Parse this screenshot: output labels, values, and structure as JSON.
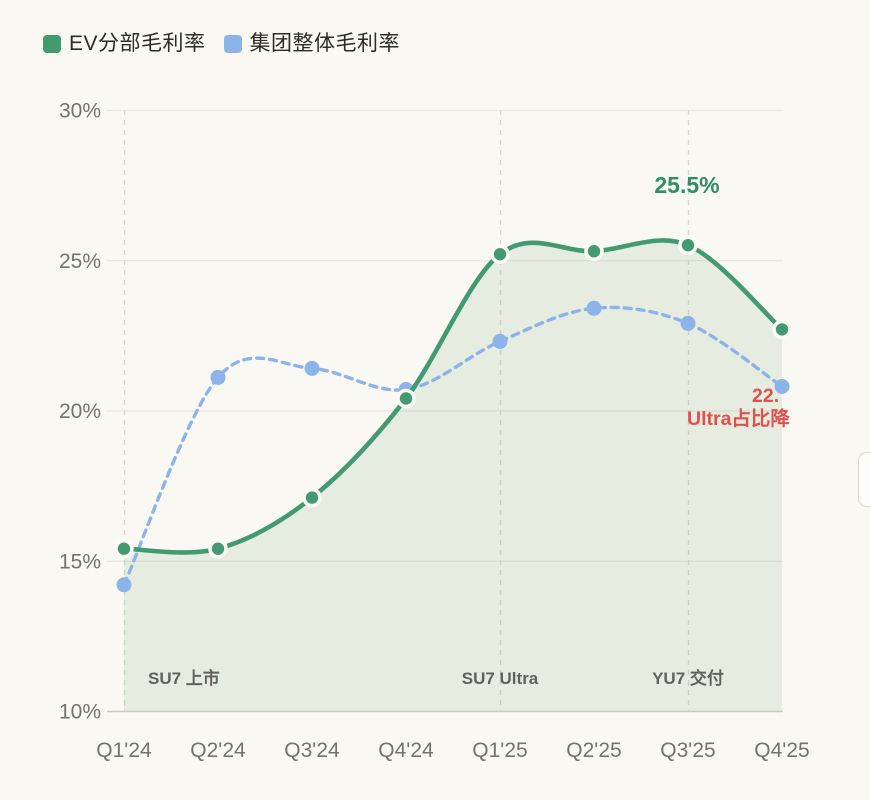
{
  "page": {
    "background": "#FAF8F2"
  },
  "legend": {
    "items": [
      {
        "label": "EV分部毛利率",
        "color": "#449A70"
      },
      {
        "label": "集团整体毛利率",
        "color": "#8CB4E8"
      }
    ]
  },
  "chart_data": {
    "type": "line",
    "title": "",
    "categories": [
      "Q1'24",
      "Q2'24",
      "Q3'24",
      "Q4'24",
      "Q1'25",
      "Q2'25",
      "Q3'25",
      "Q4'25"
    ],
    "series": [
      {
        "name": "EV分部毛利率",
        "color": "#449A70",
        "line_style": "solid",
        "area_fill": true,
        "values": [
          15.4,
          15.4,
          17.1,
          20.4,
          25.2,
          25.3,
          25.5,
          22.7
        ]
      },
      {
        "name": "集团整体毛利率",
        "color": "#8CB4E8",
        "line_style": "dashed",
        "area_fill": false,
        "values": [
          14.2,
          21.1,
          21.4,
          20.7,
          22.3,
          23.4,
          22.9,
          20.8
        ]
      }
    ],
    "xlabel": "",
    "ylabel": "",
    "ylim": [
      10,
      30
    ],
    "yticks": [
      {
        "value": 10,
        "label": "10%"
      },
      {
        "value": 15,
        "label": "15%"
      },
      {
        "value": 20,
        "label": "20%"
      },
      {
        "value": 25,
        "label": "25%"
      },
      {
        "value": 30,
        "label": "30%"
      }
    ],
    "grid": true,
    "legend_position": "top-left",
    "event_markers": [
      {
        "index": 0,
        "label": "SU7 上市",
        "align": "left"
      },
      {
        "index": 4,
        "label": "SU7 Ultra",
        "align": "center"
      },
      {
        "index": 6,
        "label": "YU7 交付",
        "align": "center"
      }
    ],
    "annotations": {
      "peak_label": {
        "text": "25.5%",
        "series": 0,
        "index": 6,
        "color": "#2E8F63"
      },
      "clipped_note": {
        "line1": "22.",
        "line2": "Ultra占比降",
        "color": "#E0514D"
      }
    },
    "colors": {
      "grid_line": "#E8E5DD",
      "axis_line": "#CCC9C2",
      "event_line": "#DAD7CF",
      "tick_text": "#73736C",
      "event_text": "#62625B",
      "area_fill": "rgba(121,160,130,0.14)",
      "marker_ring": "#FBFAF5"
    }
  },
  "scrollbar": {
    "visible": true
  }
}
